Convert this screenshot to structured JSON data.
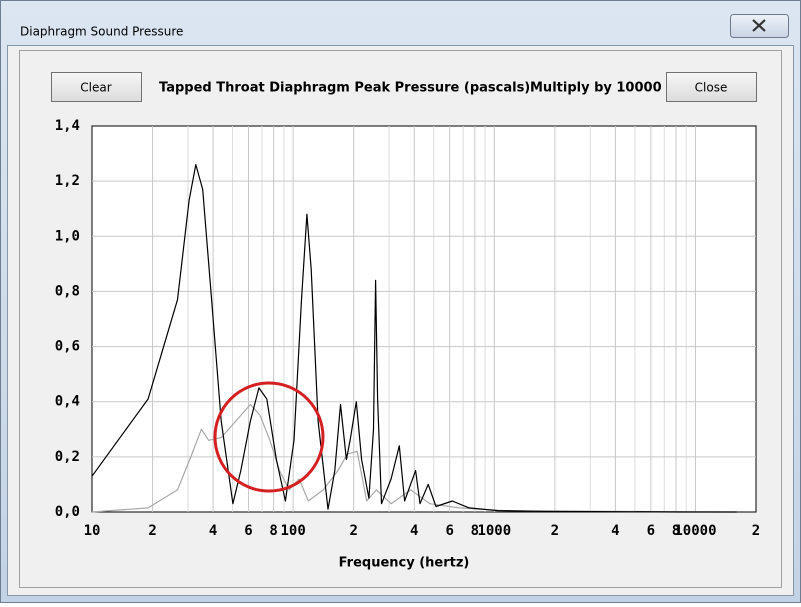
{
  "window_title": "Diaphragm Sound Pressure",
  "buttons": [
    "Clear",
    "Close"
  ],
  "header": {
    "title": "Tapped Throat Diaphragm Peak Pressure (pascals)",
    "multiplier": "Multiply by 10000"
  },
  "chart_data": {
    "type": "line",
    "xlabel": "Frequency (hertz)",
    "xscale": "log",
    "grid": true,
    "xlim": [
      10,
      20000
    ],
    "ylim": [
      0,
      1.4
    ],
    "xticks": [
      10,
      {
        "value": 20,
        "label": "2"
      },
      {
        "value": 40,
        "label": "4"
      },
      {
        "value": 60,
        "label": "6"
      },
      {
        "value": 80,
        "label": "8"
      },
      100,
      {
        "value": 200,
        "label": "2"
      },
      {
        "value": 400,
        "label": "4"
      },
      {
        "value": 600,
        "label": "6"
      },
      {
        "value": 800,
        "label": "8"
      },
      1000,
      {
        "value": 2000,
        "label": "2"
      },
      {
        "value": 4000,
        "label": "4"
      },
      {
        "value": 6000,
        "label": "6"
      },
      {
        "value": 8000,
        "label": "8"
      },
      10000,
      {
        "value": 20000,
        "label": "2"
      }
    ],
    "x_minor_ticks": [
      30,
      50,
      70,
      90,
      300,
      500,
      700,
      900,
      3000,
      5000,
      7000,
      9000
    ],
    "yticks": [
      {
        "value": 0,
        "label": "0,0"
      },
      {
        "value": 0.2,
        "label": "0,2"
      },
      {
        "value": 0.4,
        "label": "0,4"
      },
      {
        "value": 0.6,
        "label": "0,6"
      },
      {
        "value": 0.8,
        "label": "0,8"
      },
      {
        "value": 1.0,
        "label": "1,0"
      },
      {
        "value": 1.2,
        "label": "1,2"
      },
      {
        "value": 1.4,
        "label": "1,4"
      }
    ],
    "series": [
      {
        "color": "#000000",
        "x": [
          10,
          19,
          26.6,
          30.4,
          32.8,
          35.5,
          39.3,
          43.9,
          50.2,
          54.9,
          61.3,
          67.6,
          74,
          82.6,
          91.5,
          101,
          110,
          117,
          123,
          133,
          149,
          161,
          172,
          184,
          192,
          206,
          219,
          238,
          251,
          257,
          263,
          275,
          307,
          337,
          358,
          406,
          427,
          469,
          513,
          618,
          749,
          1040,
          1830,
          8700,
          16000
        ],
        "values": [
          0.13,
          0.41,
          0.77,
          1.13,
          1.26,
          1.17,
          0.77,
          0.33,
          0.03,
          0.15,
          0.33,
          0.45,
          0.41,
          0.19,
          0.04,
          0.26,
          0.77,
          1.08,
          0.88,
          0.33,
          0.01,
          0.15,
          0.39,
          0.19,
          0.26,
          0.4,
          0.19,
          0.05,
          0.3,
          0.84,
          0.41,
          0.03,
          0.12,
          0.24,
          0.04,
          0.15,
          0.03,
          0.1,
          0.02,
          0.04,
          0.015,
          0.005,
          0.002,
          0,
          0
        ]
      },
      {
        "color": "#a8a8a8",
        "x": [
          10,
          19,
          26.6,
          31,
          35,
          38,
          43.9,
          51.9,
          61.3,
          68.5,
          76.6,
          85.5,
          95.6,
          107,
          119,
          141,
          167,
          186,
          208,
          232,
          259,
          307,
          384,
          478,
          667,
          1170,
          16000
        ],
        "values": [
          0,
          0.015,
          0.08,
          0.2,
          0.3,
          0.26,
          0.27,
          0.33,
          0.39,
          0.35,
          0.26,
          0.15,
          0.08,
          0.12,
          0.04,
          0.08,
          0.15,
          0.21,
          0.22,
          0.04,
          0.08,
          0.03,
          0.08,
          0.03,
          0.015,
          0.004,
          0
        ]
      }
    ]
  }
}
